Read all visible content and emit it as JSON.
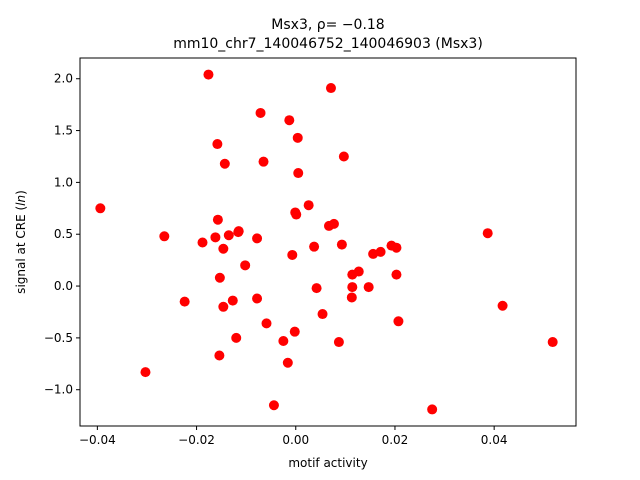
{
  "chart_data": {
    "type": "scatter",
    "title": "Msx3, ρ= −0.18",
    "subtitle": "mm10_chr7_140046752_140046903 (Msx3)",
    "xlabel": "motif activity",
    "ylabel": "signal at CRE (ln)",
    "xlim": [
      -0.0435,
      0.0565
    ],
    "ylim": [
      -1.35,
      2.2
    ],
    "xticks": [
      -0.04,
      -0.02,
      0.0,
      0.02,
      0.04
    ],
    "xtick_labels": [
      "−0.04",
      "−0.02",
      "0.00",
      "0.02",
      "0.04"
    ],
    "yticks": [
      -1.0,
      -0.5,
      0.0,
      0.5,
      1.0,
      1.5,
      2.0
    ],
    "ytick_labels": [
      "−1.0",
      "−0.5",
      "0.0",
      "0.5",
      "1.0",
      "1.5",
      "2.0"
    ],
    "grid": false,
    "marker_color": "#ff0000",
    "points": [
      {
        "x": -0.0394,
        "y": 0.75
      },
      {
        "x": -0.0303,
        "y": -0.83
      },
      {
        "x": -0.0265,
        "y": 0.48
      },
      {
        "x": -0.0224,
        "y": -0.15
      },
      {
        "x": -0.0188,
        "y": 0.42
      },
      {
        "x": -0.0176,
        "y": 2.04
      },
      {
        "x": -0.0162,
        "y": 0.47
      },
      {
        "x": -0.0158,
        "y": 1.37
      },
      {
        "x": -0.0157,
        "y": 0.64
      },
      {
        "x": -0.0153,
        "y": 0.08
      },
      {
        "x": -0.0154,
        "y": -0.67
      },
      {
        "x": -0.0146,
        "y": 0.36
      },
      {
        "x": -0.0146,
        "y": -0.2
      },
      {
        "x": -0.0143,
        "y": 1.18
      },
      {
        "x": -0.0135,
        "y": 0.49
      },
      {
        "x": -0.0127,
        "y": -0.14
      },
      {
        "x": -0.012,
        "y": -0.5
      },
      {
        "x": -0.0115,
        "y": 0.53
      },
      {
        "x": -0.0116,
        "y": 0.52
      },
      {
        "x": -0.0102,
        "y": 0.2
      },
      {
        "x": -0.0078,
        "y": 0.46
      },
      {
        "x": -0.0078,
        "y": -0.12
      },
      {
        "x": -0.0071,
        "y": 1.67
      },
      {
        "x": -0.0065,
        "y": 1.2
      },
      {
        "x": -0.0059,
        "y": -0.36
      },
      {
        "x": -0.0044,
        "y": -1.15
      },
      {
        "x": -0.0025,
        "y": -0.53
      },
      {
        "x": -0.0016,
        "y": -0.74
      },
      {
        "x": -0.0013,
        "y": 1.6
      },
      {
        "x": -0.0007,
        "y": 0.3
      },
      {
        "x": -0.0002,
        "y": -0.44
      },
      {
        "x": -0.0001,
        "y": 0.71
      },
      {
        "x": 0.0001,
        "y": 0.69
      },
      {
        "x": 0.0004,
        "y": 1.43
      },
      {
        "x": 0.0005,
        "y": 1.09
      },
      {
        "x": 0.0026,
        "y": 0.78
      },
      {
        "x": 0.0037,
        "y": 0.38
      },
      {
        "x": 0.0042,
        "y": -0.02
      },
      {
        "x": 0.0054,
        "y": -0.27
      },
      {
        "x": 0.0067,
        "y": 0.58
      },
      {
        "x": 0.0071,
        "y": 1.91
      },
      {
        "x": 0.0077,
        "y": 0.6
      },
      {
        "x": 0.0087,
        "y": -0.54
      },
      {
        "x": 0.0093,
        "y": 0.4
      },
      {
        "x": 0.0097,
        "y": 1.25
      },
      {
        "x": 0.0114,
        "y": 0.11
      },
      {
        "x": 0.0114,
        "y": -0.01
      },
      {
        "x": 0.0113,
        "y": -0.11
      },
      {
        "x": 0.0127,
        "y": 0.14
      },
      {
        "x": 0.0147,
        "y": -0.01
      },
      {
        "x": 0.0156,
        "y": 0.31
      },
      {
        "x": 0.0171,
        "y": 0.33
      },
      {
        "x": 0.0193,
        "y": 0.39
      },
      {
        "x": 0.0203,
        "y": 0.37
      },
      {
        "x": 0.0203,
        "y": 0.11
      },
      {
        "x": 0.0207,
        "y": -0.34
      },
      {
        "x": 0.0275,
        "y": -1.19
      },
      {
        "x": 0.0387,
        "y": 0.51
      },
      {
        "x": 0.0417,
        "y": -0.19
      },
      {
        "x": 0.0518,
        "y": -0.54
      }
    ]
  }
}
